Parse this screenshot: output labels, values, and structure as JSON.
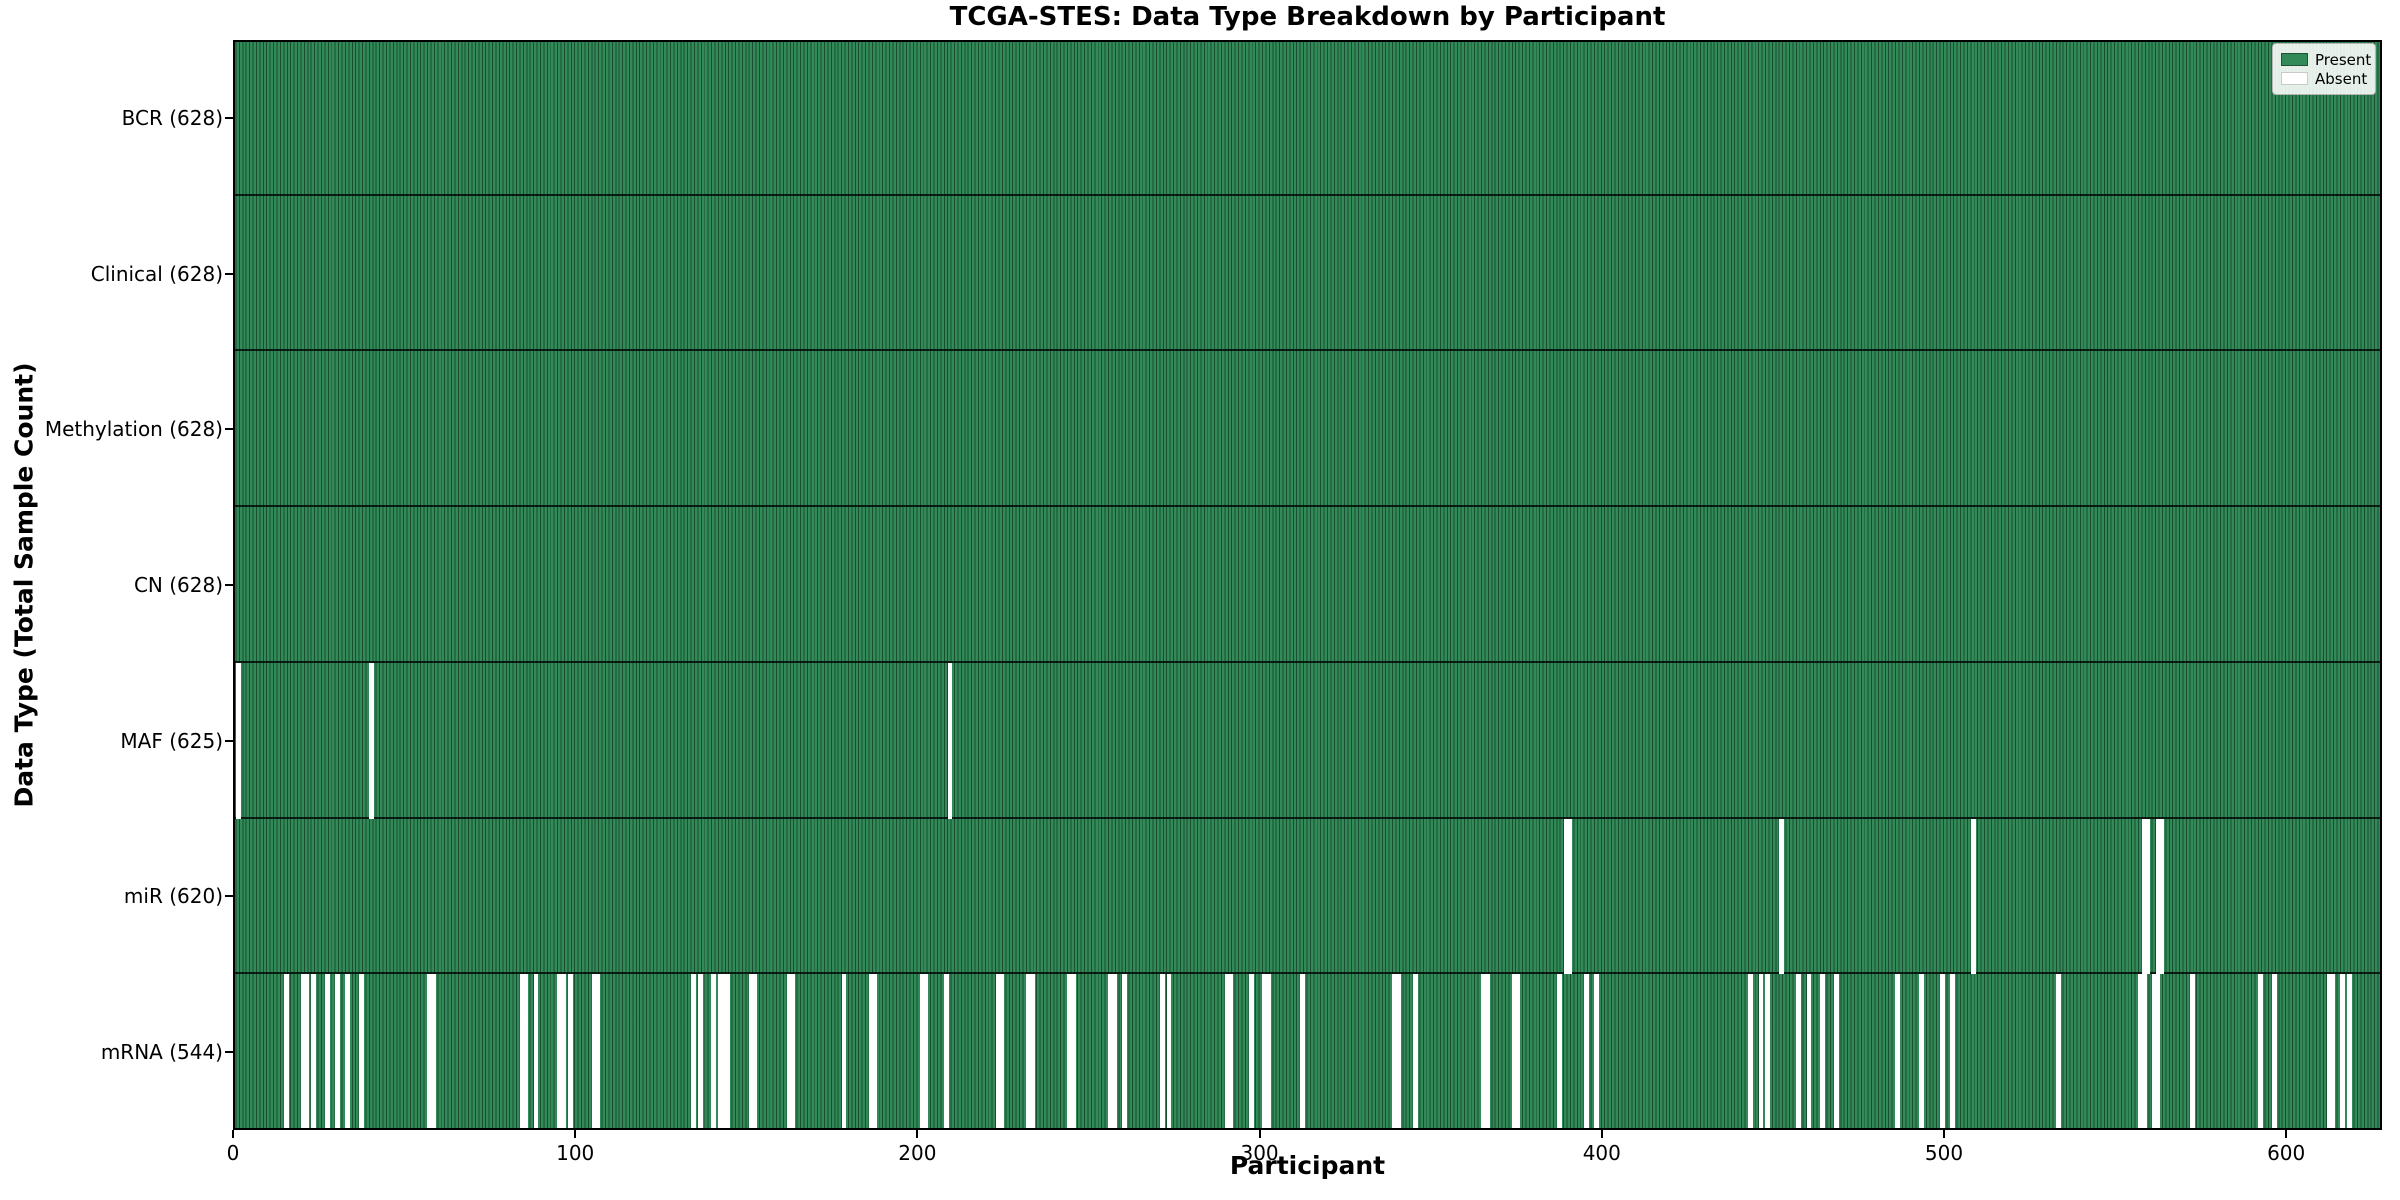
{
  "colors": {
    "present": "#318a57",
    "absent": "#ffffff",
    "bar_edge": "#1d5435",
    "row_divider": "#1a1a1a",
    "spine": "#000000",
    "legend_border": "#b5b5b5"
  },
  "legend": {
    "present_label": "Present",
    "absent_label": "Absent"
  },
  "chart_data": {
    "type": "heatmap",
    "title": "TCGA-STES: Data Type Breakdown by Participant",
    "xlabel": "Participant",
    "ylabel": "Data Type (Total Sample Count)",
    "legend_labels": [
      "Present",
      "Absent"
    ],
    "legend_position": "upper right",
    "n_participants": 628,
    "xlim": [
      0,
      628
    ],
    "x_ticks": [
      0,
      100,
      200,
      300,
      400,
      500,
      600
    ],
    "grid": false,
    "cell_values": "present=1 (green), absent=0 (white)",
    "rows": [
      {
        "name": "BCR",
        "label": "BCR (628)",
        "present_count": 628,
        "absent_participants": []
      },
      {
        "name": "Clinical",
        "label": "Clinical (628)",
        "present_count": 628,
        "absent_participants": []
      },
      {
        "name": "Methylation",
        "label": "Methylation (628)",
        "present_count": 628,
        "absent_participants": []
      },
      {
        "name": "CN",
        "label": "CN (628)",
        "present_count": 628,
        "absent_participants": []
      },
      {
        "name": "MAF",
        "label": "MAF (625)",
        "present_count": 625,
        "absent_participants": [
          1,
          40,
          209
        ]
      },
      {
        "name": "miR",
        "label": "miR (620)",
        "present_count": 620,
        "absent_participants": [
          389,
          390,
          452,
          508,
          558,
          559,
          562,
          563
        ]
      },
      {
        "name": "mRNA",
        "label": "mRNA (544)",
        "present_count": 544,
        "absent_participants": [
          15,
          20,
          21,
          23,
          27,
          30,
          33,
          37,
          57,
          58,
          84,
          85,
          88,
          95,
          96,
          98,
          105,
          106,
          134,
          136,
          140,
          142,
          143,
          144,
          151,
          152,
          162,
          163,
          178,
          186,
          187,
          201,
          202,
          208,
          223,
          224,
          232,
          233,
          244,
          245,
          256,
          257,
          260,
          271,
          273,
          290,
          291,
          297,
          301,
          302,
          312,
          339,
          340,
          345,
          365,
          366,
          374,
          375,
          387,
          395,
          398,
          443,
          446,
          448,
          457,
          460,
          464,
          468,
          486,
          493,
          499,
          502,
          533,
          557,
          558,
          561,
          562,
          572,
          592,
          596,
          612,
          613,
          616,
          618
        ]
      }
    ]
  }
}
